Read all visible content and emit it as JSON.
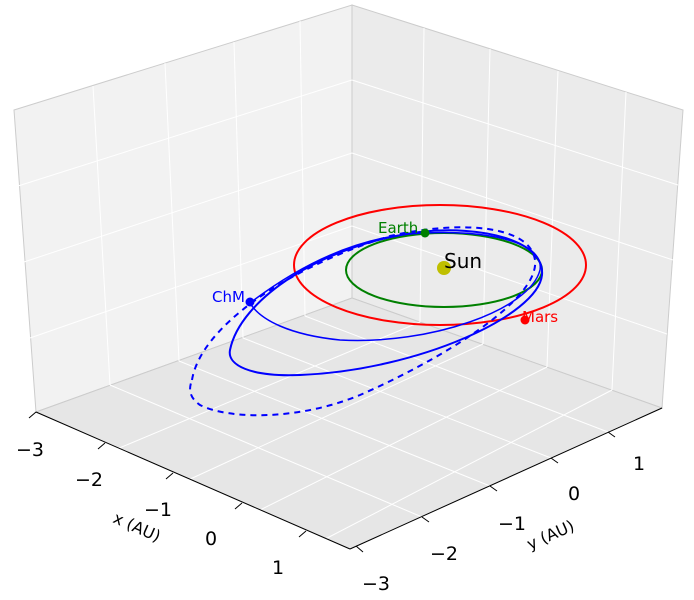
{
  "chart_data": {
    "type": "line",
    "projection": "3d",
    "grid": true,
    "xlabel": "x (AU)",
    "ylabel": "y (AU)",
    "xlim": [
      -3,
      1.5
    ],
    "ylim": [
      -3,
      1.5
    ],
    "x_ticks": [
      "−3",
      "−2",
      "−1",
      "0",
      "1"
    ],
    "y_ticks": [
      "−3",
      "−2",
      "−1",
      "0",
      "1"
    ],
    "series": [
      {
        "name": "Earth",
        "color": "#008000",
        "style": "solid",
        "orbit": {
          "a": 1.0,
          "e": 0.017
        },
        "marker_label": "Earth"
      },
      {
        "name": "Mars",
        "color": "#ff0000",
        "style": "solid",
        "orbit": {
          "a": 1.52,
          "e": 0.093
        },
        "marker_label": "Mars"
      },
      {
        "name": "ChM",
        "color": "#0000ff",
        "style": "solid/dashed",
        "orbit": {
          "a": 1.7,
          "e": 0.55
        },
        "marker_label": "ChM"
      }
    ],
    "points": [
      {
        "label": "Sun",
        "x": 0,
        "y": 0,
        "color": "#bfbf00"
      }
    ]
  }
}
